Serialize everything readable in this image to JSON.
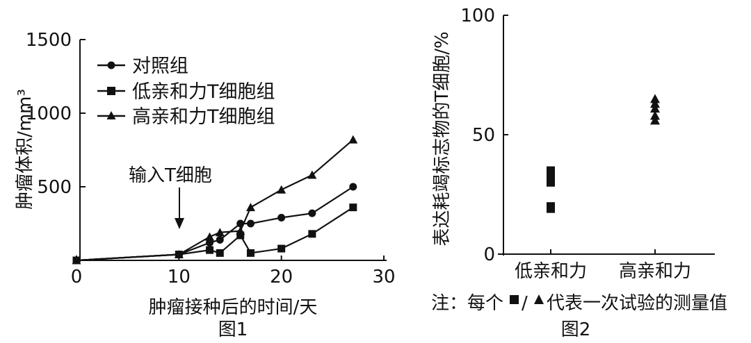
{
  "chart_data": [
    {
      "type": "line",
      "caption": "图1",
      "xlabel": "肿瘤接种后的时间/天",
      "ylabel": "肿瘤体积/mm³",
      "xlim": [
        0,
        30
      ],
      "ylim": [
        0,
        1500
      ],
      "xticks": [
        "0",
        "10",
        "20",
        "30"
      ],
      "yticks": [
        "1500",
        "1000",
        "500"
      ],
      "annotation": "输入T细胞",
      "annotation_x": 10,
      "legend_position": "top-left",
      "series": [
        {
          "name": "对照组",
          "marker": "circle",
          "points": [
            [
              0,
              0
            ],
            [
              10,
              40
            ],
            [
              13,
              120
            ],
            [
              14,
              140
            ],
            [
              16,
              250
            ],
            [
              17,
              250
            ],
            [
              20,
              290
            ],
            [
              23,
              320
            ],
            [
              27,
              500
            ]
          ]
        },
        {
          "name": "低亲和力T细胞组",
          "marker": "square",
          "points": [
            [
              0,
              0
            ],
            [
              10,
              40
            ],
            [
              13,
              70
            ],
            [
              14,
              50
            ],
            [
              16,
              170
            ],
            [
              17,
              50
            ],
            [
              20,
              80
            ],
            [
              23,
              180
            ],
            [
              27,
              360
            ]
          ]
        },
        {
          "name": "高亲和力T细胞组",
          "marker": "triangle",
          "points": [
            [
              0,
              0
            ],
            [
              10,
              40
            ],
            [
              13,
              160
            ],
            [
              14,
              190
            ],
            [
              16,
              200
            ],
            [
              17,
              360
            ],
            [
              20,
              480
            ],
            [
              23,
              580
            ],
            [
              27,
              820
            ]
          ]
        }
      ]
    },
    {
      "type": "scatter",
      "caption": "图2",
      "ylabel": "表达耗竭标志物的T细胞/%",
      "ylim": [
        0,
        100
      ],
      "yticks": [
        "100",
        "50",
        "0"
      ],
      "categories": [
        "低亲和力",
        "高亲和力"
      ],
      "series": [
        {
          "category": "低亲和力",
          "marker": "square",
          "values": [
            35,
            33,
            30,
            20,
            19
          ]
        },
        {
          "category": "高亲和力",
          "marker": "triangle",
          "values": [
            65,
            63,
            61,
            58,
            56
          ]
        }
      ],
      "note": {
        "prefix": "注：每个",
        "slash": "/",
        "suffix": "代表一次试验的测量值"
      }
    }
  ]
}
